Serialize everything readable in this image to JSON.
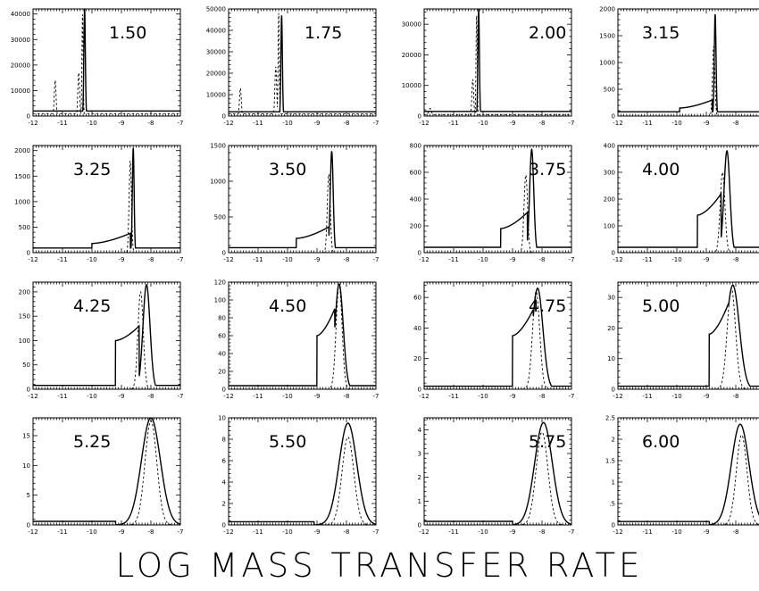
{
  "chart_data": [
    {
      "type": "line",
      "title": "1.50",
      "ylim": [
        0,
        42000
      ],
      "yticks": [
        "0",
        "10000",
        "20000",
        "30000",
        "40000"
      ],
      "ytick_values": [
        0,
        10000,
        20000,
        30000,
        40000
      ],
      "xlim": [
        -12,
        -7
      ],
      "xticks": [
        "-12",
        "-11",
        "-10",
        "-9",
        "-8",
        "-7"
      ],
      "series": [
        {
          "style": "solid",
          "peaks": [
            {
              "x": -10.25,
              "y": 42000,
              "w": 0.025
            }
          ],
          "base": 2000,
          "base_range": [
            -12,
            -7
          ]
        },
        {
          "style": "dashed",
          "peaks": [
            {
              "x": -11.25,
              "y": 14000,
              "w": 0.03
            },
            {
              "x": -10.45,
              "y": 17000,
              "w": 0.03
            },
            {
              "x": -10.32,
              "y": 40000,
              "w": 0.02
            }
          ],
          "base": 1000,
          "base_range": [
            -12,
            -7
          ]
        }
      ]
    },
    {
      "type": "line",
      "title": "1.75",
      "ylim": [
        0,
        50000
      ],
      "yticks": [
        "0",
        "10000",
        "20000",
        "30000",
        "40000",
        "50000"
      ],
      "ytick_values": [
        0,
        10000,
        20000,
        30000,
        40000,
        50000
      ],
      "xlim": [
        -12,
        -7
      ],
      "xticks": [
        "-12",
        "-11",
        "-10",
        "-9",
        "-8",
        "-7"
      ],
      "series": [
        {
          "style": "solid",
          "peaks": [
            {
              "x": -10.2,
              "y": 47000,
              "w": 0.025
            }
          ],
          "base": 2000,
          "base_range": [
            -12,
            -7
          ]
        },
        {
          "style": "dashed",
          "peaks": [
            {
              "x": -11.6,
              "y": 13000,
              "w": 0.03
            },
            {
              "x": -10.4,
              "y": 23000,
              "w": 0.03
            },
            {
              "x": -10.3,
              "y": 48000,
              "w": 0.02
            }
          ],
          "base": 1000,
          "base_range": [
            -12,
            -7
          ]
        }
      ]
    },
    {
      "type": "line",
      "title": "2.00",
      "ylim": [
        0,
        35000
      ],
      "yticks": [
        "0",
        "10000",
        "20000",
        "30000"
      ],
      "ytick_values": [
        0,
        10000,
        20000,
        30000
      ],
      "xlim": [
        -12,
        -7
      ],
      "xticks": [
        "-12",
        "-11",
        "-10",
        "-9",
        "-8",
        "-7"
      ],
      "series": [
        {
          "style": "solid",
          "peaks": [
            {
              "x": -10.15,
              "y": 35000,
              "w": 0.025
            }
          ],
          "base": 1500,
          "base_range": [
            -12,
            -7
          ]
        },
        {
          "style": "dashed",
          "peaks": [
            {
              "x": -11.8,
              "y": 2500,
              "w": 0.05
            },
            {
              "x": -10.35,
              "y": 12000,
              "w": 0.03
            },
            {
              "x": -10.22,
              "y": 33000,
              "w": 0.02
            }
          ],
          "base": 500,
          "base_range": [
            -12,
            -7
          ]
        }
      ]
    },
    {
      "type": "line",
      "title": "3.15",
      "ylim": [
        0,
        2000
      ],
      "yticks": [
        "0",
        "500",
        "1000",
        "1500",
        "2000"
      ],
      "ytick_values": [
        0,
        500,
        1000,
        1500,
        2000
      ],
      "xlim": [
        -12,
        -7
      ],
      "xticks": [
        "-12",
        "-11",
        "-10",
        "-9",
        "-8",
        "-7"
      ],
      "series": [
        {
          "style": "solid",
          "peaks": [
            {
              "x": -8.7,
              "y": 1900,
              "w": 0.03
            }
          ],
          "base": 80,
          "base_range": [
            -12,
            -7
          ],
          "shoulder": {
            "x0": -9.9,
            "x1": -8.8,
            "y0": 150,
            "y1": 300
          }
        },
        {
          "style": "dashed",
          "peaks": [
            {
              "x": -8.75,
              "y": 1300,
              "w": 0.04
            }
          ],
          "base": 0,
          "base_range": [
            -12,
            -7
          ]
        }
      ]
    },
    {
      "type": "line",
      "title": "3.25",
      "ylim": [
        0,
        2100
      ],
      "yticks": [
        "0",
        "500",
        "1000",
        "1500",
        "2000"
      ],
      "ytick_values": [
        0,
        500,
        1000,
        1500,
        2000
      ],
      "xlim": [
        -12,
        -7
      ],
      "xticks": [
        "-12",
        "-11",
        "-10",
        "-9",
        "-8",
        "-7"
      ],
      "series": [
        {
          "style": "solid",
          "peaks": [
            {
              "x": -8.6,
              "y": 2050,
              "w": 0.03
            }
          ],
          "base": 90,
          "base_range": [
            -12,
            -7
          ],
          "shoulder": {
            "x0": -10.0,
            "x1": -8.7,
            "y0": 180,
            "y1": 380
          }
        },
        {
          "style": "dashed",
          "peaks": [
            {
              "x": -8.7,
              "y": 1800,
              "w": 0.04
            }
          ],
          "base": 0,
          "base_range": [
            -12,
            -7
          ]
        }
      ]
    },
    {
      "type": "line",
      "title": "3.50",
      "ylim": [
        0,
        1500
      ],
      "yticks": [
        "0",
        "500",
        "1000",
        "1500"
      ],
      "ytick_values": [
        0,
        500,
        1000,
        1500
      ],
      "xlim": [
        -12,
        -7
      ],
      "xticks": [
        "-12",
        "-11",
        "-10",
        "-9",
        "-8",
        "-7"
      ],
      "series": [
        {
          "style": "solid",
          "peaks": [
            {
              "x": -8.5,
              "y": 1420,
              "w": 0.05
            }
          ],
          "base": 70,
          "base_range": [
            -12,
            -7
          ],
          "shoulder": {
            "x0": -9.7,
            "x1": -8.6,
            "y0": 200,
            "y1": 360
          }
        },
        {
          "style": "dashed",
          "peaks": [
            {
              "x": -8.6,
              "y": 1100,
              "w": 0.05
            }
          ],
          "base": 0,
          "base_range": [
            -12,
            -7
          ]
        }
      ]
    },
    {
      "type": "line",
      "title": "3.75",
      "ylim": [
        0,
        800
      ],
      "yticks": [
        "0",
        "200",
        "400",
        "600",
        "800"
      ],
      "ytick_values": [
        0,
        200,
        400,
        600,
        800
      ],
      "xlim": [
        -12,
        -7
      ],
      "xticks": [
        "-12",
        "-11",
        "-10",
        "-9",
        "-8",
        "-7"
      ],
      "series": [
        {
          "style": "solid",
          "peaks": [
            {
              "x": -8.35,
              "y": 770,
              "w": 0.07
            }
          ],
          "base": 40,
          "base_range": [
            -12,
            -7
          ],
          "shoulder": {
            "x0": -9.4,
            "x1": -8.5,
            "y0": 180,
            "y1": 300
          }
        },
        {
          "style": "dashed",
          "peaks": [
            {
              "x": -8.55,
              "y": 580,
              "w": 0.06
            }
          ],
          "base": 0,
          "base_range": [
            -12,
            -7
          ]
        }
      ]
    },
    {
      "type": "line",
      "title": "4.00",
      "ylim": [
        0,
        400
      ],
      "yticks": [
        "0",
        "100",
        "200",
        "300",
        "400"
      ],
      "ytick_values": [
        0,
        100,
        200,
        300,
        400
      ],
      "xlim": [
        -12,
        -7
      ],
      "xticks": [
        "-12",
        "-11",
        "-10",
        "-9",
        "-8",
        "-7"
      ],
      "series": [
        {
          "style": "solid",
          "peaks": [
            {
              "x": -8.3,
              "y": 380,
              "w": 0.1
            }
          ],
          "base": 20,
          "base_range": [
            -12,
            -7
          ],
          "shoulder": {
            "x0": -9.3,
            "x1": -8.5,
            "y0": 140,
            "y1": 220
          }
        },
        {
          "style": "dashed",
          "peaks": [
            {
              "x": -8.45,
              "y": 300,
              "w": 0.08
            }
          ],
          "base": 0,
          "base_range": [
            -12,
            -7
          ]
        }
      ]
    },
    {
      "type": "line",
      "title": "4.25",
      "ylim": [
        0,
        220
      ],
      "yticks": [
        "0",
        "50",
        "100",
        "150",
        "200"
      ],
      "ytick_values": [
        0,
        50,
        100,
        150,
        200
      ],
      "xlim": [
        -12,
        -7
      ],
      "xticks": [
        "-12",
        "-11",
        "-10",
        "-9",
        "-8",
        "-7"
      ],
      "series": [
        {
          "style": "solid",
          "peaks": [
            {
              "x": -8.15,
              "y": 215,
              "w": 0.12
            }
          ],
          "base": 8,
          "base_range": [
            -12,
            -7
          ],
          "shoulder": {
            "x0": -9.2,
            "x1": -8.4,
            "y0": 100,
            "y1": 130
          }
        },
        {
          "style": "dashed",
          "peaks": [
            {
              "x": -8.35,
              "y": 200,
              "w": 0.09
            }
          ],
          "base": 0,
          "base_range": [
            -12,
            -7
          ]
        }
      ]
    },
    {
      "type": "line",
      "title": "4.50",
      "ylim": [
        0,
        120
      ],
      "yticks": [
        "0",
        "20",
        "40",
        "60",
        "80",
        "100",
        "120"
      ],
      "ytick_values": [
        0,
        20,
        40,
        60,
        80,
        100,
        120
      ],
      "xlim": [
        -12,
        -7
      ],
      "xticks": [
        "-12",
        "-11",
        "-10",
        "-9",
        "-8",
        "-7"
      ],
      "series": [
        {
          "style": "solid",
          "peaks": [
            {
              "x": -8.25,
              "y": 118,
              "w": 0.14
            }
          ],
          "base": 4,
          "base_range": [
            -12,
            -7
          ],
          "shoulder": {
            "x0": -9.0,
            "x1": -8.4,
            "y0": 60,
            "y1": 90
          }
        },
        {
          "style": "dashed",
          "peaks": [
            {
              "x": -8.25,
              "y": 118,
              "w": 0.1
            }
          ],
          "base": 0,
          "base_range": [
            -12,
            -7
          ]
        }
      ]
    },
    {
      "type": "line",
      "title": "4.75",
      "ylim": [
        0,
        70
      ],
      "yticks": [
        "0",
        "20",
        "40",
        "60"
      ],
      "ytick_values": [
        0,
        20,
        40,
        60
      ],
      "xlim": [
        -12,
        -7
      ],
      "xticks": [
        "-12",
        "-11",
        "-10",
        "-9",
        "-8",
        "-7"
      ],
      "series": [
        {
          "style": "solid",
          "peaks": [
            {
              "x": -8.15,
              "y": 66,
              "w": 0.18
            }
          ],
          "base": 2,
          "base_range": [
            -12,
            -7
          ],
          "shoulder": {
            "x0": -9.0,
            "x1": -8.3,
            "y0": 35,
            "y1": 52
          }
        },
        {
          "style": "dashed",
          "peaks": [
            {
              "x": -8.2,
              "y": 64,
              "w": 0.12
            }
          ],
          "base": 0,
          "base_range": [
            -12,
            -7
          ]
        }
      ]
    },
    {
      "type": "line",
      "title": "5.00",
      "ylim": [
        0,
        35
      ],
      "yticks": [
        "0",
        "10",
        "20",
        "30"
      ],
      "ytick_values": [
        0,
        10,
        20,
        30
      ],
      "xlim": [
        -12,
        -7
      ],
      "xticks": [
        "-12",
        "-11",
        "-10",
        "-9",
        "-8",
        "-7"
      ],
      "series": [
        {
          "style": "solid",
          "peaks": [
            {
              "x": -8.1,
              "y": 34,
              "w": 0.22
            }
          ],
          "base": 1,
          "base_range": [
            -12,
            -7
          ],
          "shoulder": {
            "x0": -8.9,
            "x1": -8.25,
            "y0": 18,
            "y1": 28
          }
        },
        {
          "style": "dashed",
          "peaks": [
            {
              "x": -8.15,
              "y": 33,
              "w": 0.14
            }
          ],
          "base": 0,
          "base_range": [
            -12,
            -7
          ]
        }
      ]
    },
    {
      "type": "line",
      "title": "5.25",
      "ylim": [
        0,
        18
      ],
      "yticks": [
        "0",
        "5",
        "10",
        "15"
      ],
      "ytick_values": [
        0,
        5,
        10,
        15
      ],
      "xlim": [
        -12,
        -7
      ],
      "xticks": [
        "-12",
        "-11",
        "-10",
        "-9",
        "-8",
        "-7"
      ],
      "series": [
        {
          "style": "solid",
          "peaks": [
            {
              "x": -8.0,
              "y": 18,
              "w": 0.32
            }
          ],
          "base": 0.6,
          "base_range": [
            -12,
            -9.2
          ]
        },
        {
          "style": "dashed",
          "peaks": [
            {
              "x": -8.0,
              "y": 17.5,
              "w": 0.2
            }
          ],
          "base": 0,
          "base_range": [
            -12,
            -7
          ]
        }
      ]
    },
    {
      "type": "line",
      "title": "5.50",
      "ylim": [
        0,
        10
      ],
      "yticks": [
        "0",
        "2",
        "4",
        "6",
        "8",
        "10"
      ],
      "ytick_values": [
        0,
        2,
        4,
        6,
        8,
        10
      ],
      "xlim": [
        -12,
        -7
      ],
      "xticks": [
        "-12",
        "-11",
        "-10",
        "-9",
        "-8",
        "-7"
      ],
      "series": [
        {
          "style": "solid",
          "peaks": [
            {
              "x": -7.95,
              "y": 9.5,
              "w": 0.3
            }
          ],
          "base": 0.3,
          "base_range": [
            -12,
            -9.1
          ]
        },
        {
          "style": "dashed",
          "peaks": [
            {
              "x": -7.95,
              "y": 8.2,
              "w": 0.2
            }
          ],
          "base": 0,
          "base_range": [
            -12,
            -7
          ]
        }
      ]
    },
    {
      "type": "line",
      "title": "5.75",
      "ylim": [
        0,
        4.5
      ],
      "yticks": [
        "0",
        "1",
        "2",
        "3",
        "4"
      ],
      "ytick_values": [
        0,
        1,
        2,
        3,
        4
      ],
      "xlim": [
        -12,
        -7
      ],
      "xticks": [
        "-12",
        "-11",
        "-10",
        "-9",
        "-8",
        "-7"
      ],
      "series": [
        {
          "style": "solid",
          "peaks": [
            {
              "x": -7.95,
              "y": 4.3,
              "w": 0.3
            }
          ],
          "base": 0.15,
          "base_range": [
            -12,
            -9.0
          ]
        },
        {
          "style": "dashed",
          "peaks": [
            {
              "x": -8.0,
              "y": 3.9,
              "w": 0.2
            }
          ],
          "base": 0,
          "base_range": [
            -12,
            -7
          ]
        }
      ]
    },
    {
      "type": "line",
      "title": "6.00",
      "ylim": [
        0,
        2.5
      ],
      "yticks": [
        "0",
        ".5",
        "1",
        "1.5",
        "2",
        "2.5"
      ],
      "ytick_values": [
        0,
        0.5,
        1,
        1.5,
        2,
        2.5
      ],
      "xlim": [
        -12,
        -7
      ],
      "xticks": [
        "-12",
        "-11",
        "-10",
        "-9",
        "-8",
        "-7"
      ],
      "series": [
        {
          "style": "solid",
          "peaks": [
            {
              "x": -7.85,
              "y": 2.35,
              "w": 0.3
            }
          ],
          "base": 0.08,
          "base_range": [
            -12,
            -8.9
          ]
        },
        {
          "style": "dashed",
          "peaks": [
            {
              "x": -7.8,
              "y": 2.1,
              "w": 0.18
            }
          ],
          "base": 0,
          "base_range": [
            -12,
            -7
          ]
        }
      ]
    }
  ],
  "figure": {
    "xlabel": "LOG MASS TRANSFER RATE"
  },
  "colors": {
    "line": "#000000",
    "background": "#ffffff"
  }
}
